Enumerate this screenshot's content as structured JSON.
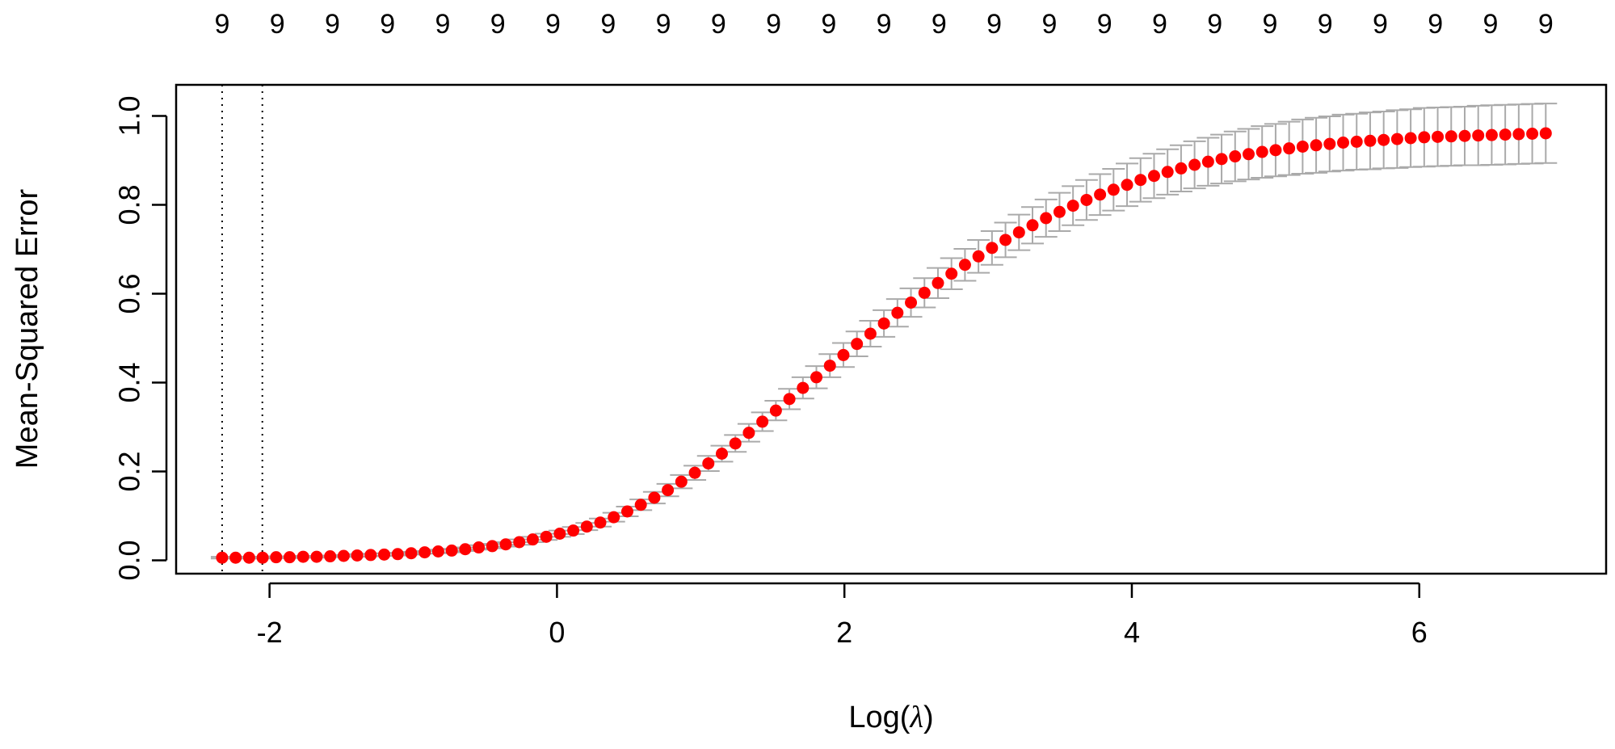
{
  "chart_data": {
    "type": "scatter",
    "title": "",
    "xlabel_prefix": "Log(",
    "xlabel_symbol": "λ",
    "xlabel_suffix": ")",
    "ylabel": "Mean-Squared Error",
    "xlim": [
      -2.65,
      7.3
    ],
    "ylim": [
      -0.03,
      1.07
    ],
    "x_ticks": [
      -2,
      0,
      2,
      4,
      6
    ],
    "x_tick_labels": [
      "-2",
      "0",
      "2",
      "4",
      "6"
    ],
    "y_ticks": [
      0.0,
      0.2,
      0.4,
      0.6,
      0.8,
      1.0
    ],
    "y_tick_labels": [
      "0.0",
      "0.2",
      "0.4",
      "0.6",
      "0.8",
      "1.0"
    ],
    "top_labels": [
      "9",
      "9",
      "9",
      "9",
      "9",
      "9",
      "9",
      "9",
      "9",
      "9",
      "9",
      "9",
      "9",
      "9",
      "9",
      "9",
      "9",
      "9",
      "9",
      "9",
      "9",
      "9",
      "9",
      "9",
      "9"
    ],
    "top_x_start": -2.33,
    "top_x_end": 6.88,
    "vlines": [
      -2.33,
      -2.05
    ],
    "point_color": "#ff0000",
    "errorbar_color": "#aaaaaa",
    "points": {
      "x_start": -2.33,
      "x_end": 6.88,
      "count": 99,
      "y": [
        0.006,
        0.006,
        0.006,
        0.006,
        0.007,
        0.007,
        0.008,
        0.008,
        0.009,
        0.01,
        0.011,
        0.012,
        0.013,
        0.014,
        0.016,
        0.018,
        0.02,
        0.022,
        0.025,
        0.029,
        0.032,
        0.036,
        0.041,
        0.047,
        0.053,
        0.06,
        0.067,
        0.076,
        0.085,
        0.097,
        0.11,
        0.125,
        0.141,
        0.158,
        0.177,
        0.197,
        0.218,
        0.24,
        0.263,
        0.287,
        0.312,
        0.337,
        0.363,
        0.388,
        0.412,
        0.438,
        0.462,
        0.487,
        0.51,
        0.533,
        0.557,
        0.58,
        0.602,
        0.624,
        0.645,
        0.665,
        0.684,
        0.703,
        0.721,
        0.738,
        0.754,
        0.77,
        0.784,
        0.798,
        0.811,
        0.823,
        0.834,
        0.845,
        0.856,
        0.865,
        0.874,
        0.882,
        0.89,
        0.897,
        0.903,
        0.909,
        0.914,
        0.919,
        0.923,
        0.927,
        0.931,
        0.934,
        0.937,
        0.94,
        0.942,
        0.944,
        0.946,
        0.948,
        0.95,
        0.952,
        0.953,
        0.954,
        0.955,
        0.956,
        0.957,
        0.958,
        0.959,
        0.96,
        0.961
      ],
      "se": [
        0.002,
        0.002,
        0.002,
        0.002,
        0.002,
        0.002,
        0.002,
        0.002,
        0.002,
        0.002,
        0.003,
        0.003,
        0.003,
        0.003,
        0.003,
        0.003,
        0.004,
        0.004,
        0.004,
        0.005,
        0.005,
        0.005,
        0.006,
        0.006,
        0.007,
        0.007,
        0.008,
        0.008,
        0.009,
        0.01,
        0.011,
        0.012,
        0.013,
        0.014,
        0.015,
        0.016,
        0.017,
        0.018,
        0.019,
        0.02,
        0.021,
        0.022,
        0.023,
        0.024,
        0.025,
        0.026,
        0.027,
        0.028,
        0.029,
        0.03,
        0.031,
        0.032,
        0.033,
        0.034,
        0.035,
        0.036,
        0.037,
        0.038,
        0.039,
        0.04,
        0.041,
        0.042,
        0.043,
        0.044,
        0.045,
        0.046,
        0.047,
        0.048,
        0.049,
        0.05,
        0.051,
        0.052,
        0.053,
        0.054,
        0.055,
        0.056,
        0.057,
        0.058,
        0.059,
        0.06,
        0.061,
        0.062,
        0.062,
        0.063,
        0.063,
        0.064,
        0.064,
        0.065,
        0.065,
        0.066,
        0.066,
        0.066,
        0.066,
        0.067,
        0.067,
        0.067,
        0.067,
        0.067,
        0.067
      ]
    }
  }
}
